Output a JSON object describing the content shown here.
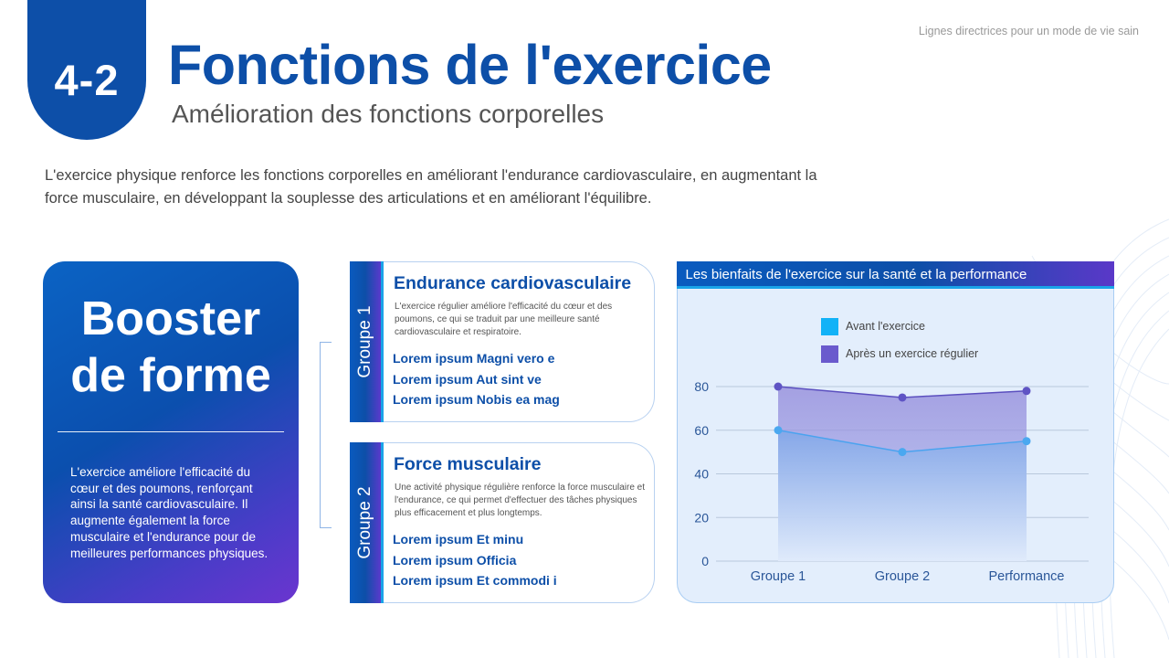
{
  "header": {
    "section_number": "4-2",
    "title": "Fonctions de l'exercice",
    "subtitle": "Amélioration des fonctions corporelles",
    "top_right_caption": "Lignes directrices pour un mode de vie sain"
  },
  "intro": "L'exercice physique renforce les fonctions corporelles en améliorant l'endurance cardiovasculaire, en augmentant la force musculaire, en développant la souplesse des articulations et en améliorant l'équilibre.",
  "hero": {
    "title_line1": "Booster",
    "title_line2": "de forme",
    "text": "L'exercice améliore l'efficacité du cœur et des poumons, renforçant ainsi la santé cardiovasculaire. Il augmente également la force musculaire et l'endurance pour de meilleures performances physiques."
  },
  "groups": [
    {
      "label": "Groupe 1",
      "title": "Endurance cardiovasculaire",
      "description": "L'exercice régulier améliore l'efficacité du cœur et des poumons, ce qui se traduit par une meilleure santé cardiovasculaire et respiratoire.",
      "items": [
        "Lorem ipsum Magni vero e",
        "Lorem ipsum Aut sint ve",
        "Lorem ipsum Nobis ea mag"
      ]
    },
    {
      "label": "Groupe 2",
      "title": "Force musculaire",
      "description": "Une activité physique régulière renforce la force musculaire et l'endurance, ce qui permet d'effectuer des tâches physiques plus efficacement et plus longtemps.",
      "items": [
        "Lorem ipsum Et minu",
        "Lorem ipsum Officia",
        "Lorem ipsum Et commodi i"
      ]
    }
  ],
  "colors": {
    "brand_blue": "#0d4fa8",
    "accent_cyan": "#1aa3e8",
    "accent_purple": "#6b35cf",
    "series_before": "#1ab0f5",
    "series_after": "#6a5acd"
  },
  "chart_data": {
    "type": "area",
    "title": "Les bienfaits de l'exercice sur la santé et la performance",
    "categories": [
      "Groupe 1",
      "Groupe 2",
      "Performance"
    ],
    "series": [
      {
        "name": "Avant l'exercice",
        "values": [
          60,
          50,
          55
        ],
        "color": "#4aa8f0"
      },
      {
        "name": "Après un exercice régulier",
        "values": [
          80,
          75,
          78
        ],
        "color": "#6a5acd"
      }
    ],
    "yticks": [
      0,
      20,
      40,
      60,
      80
    ],
    "ylim": [
      0,
      80
    ],
    "xlabel": "",
    "ylabel": "",
    "grid": true,
    "legend_position": "top"
  }
}
